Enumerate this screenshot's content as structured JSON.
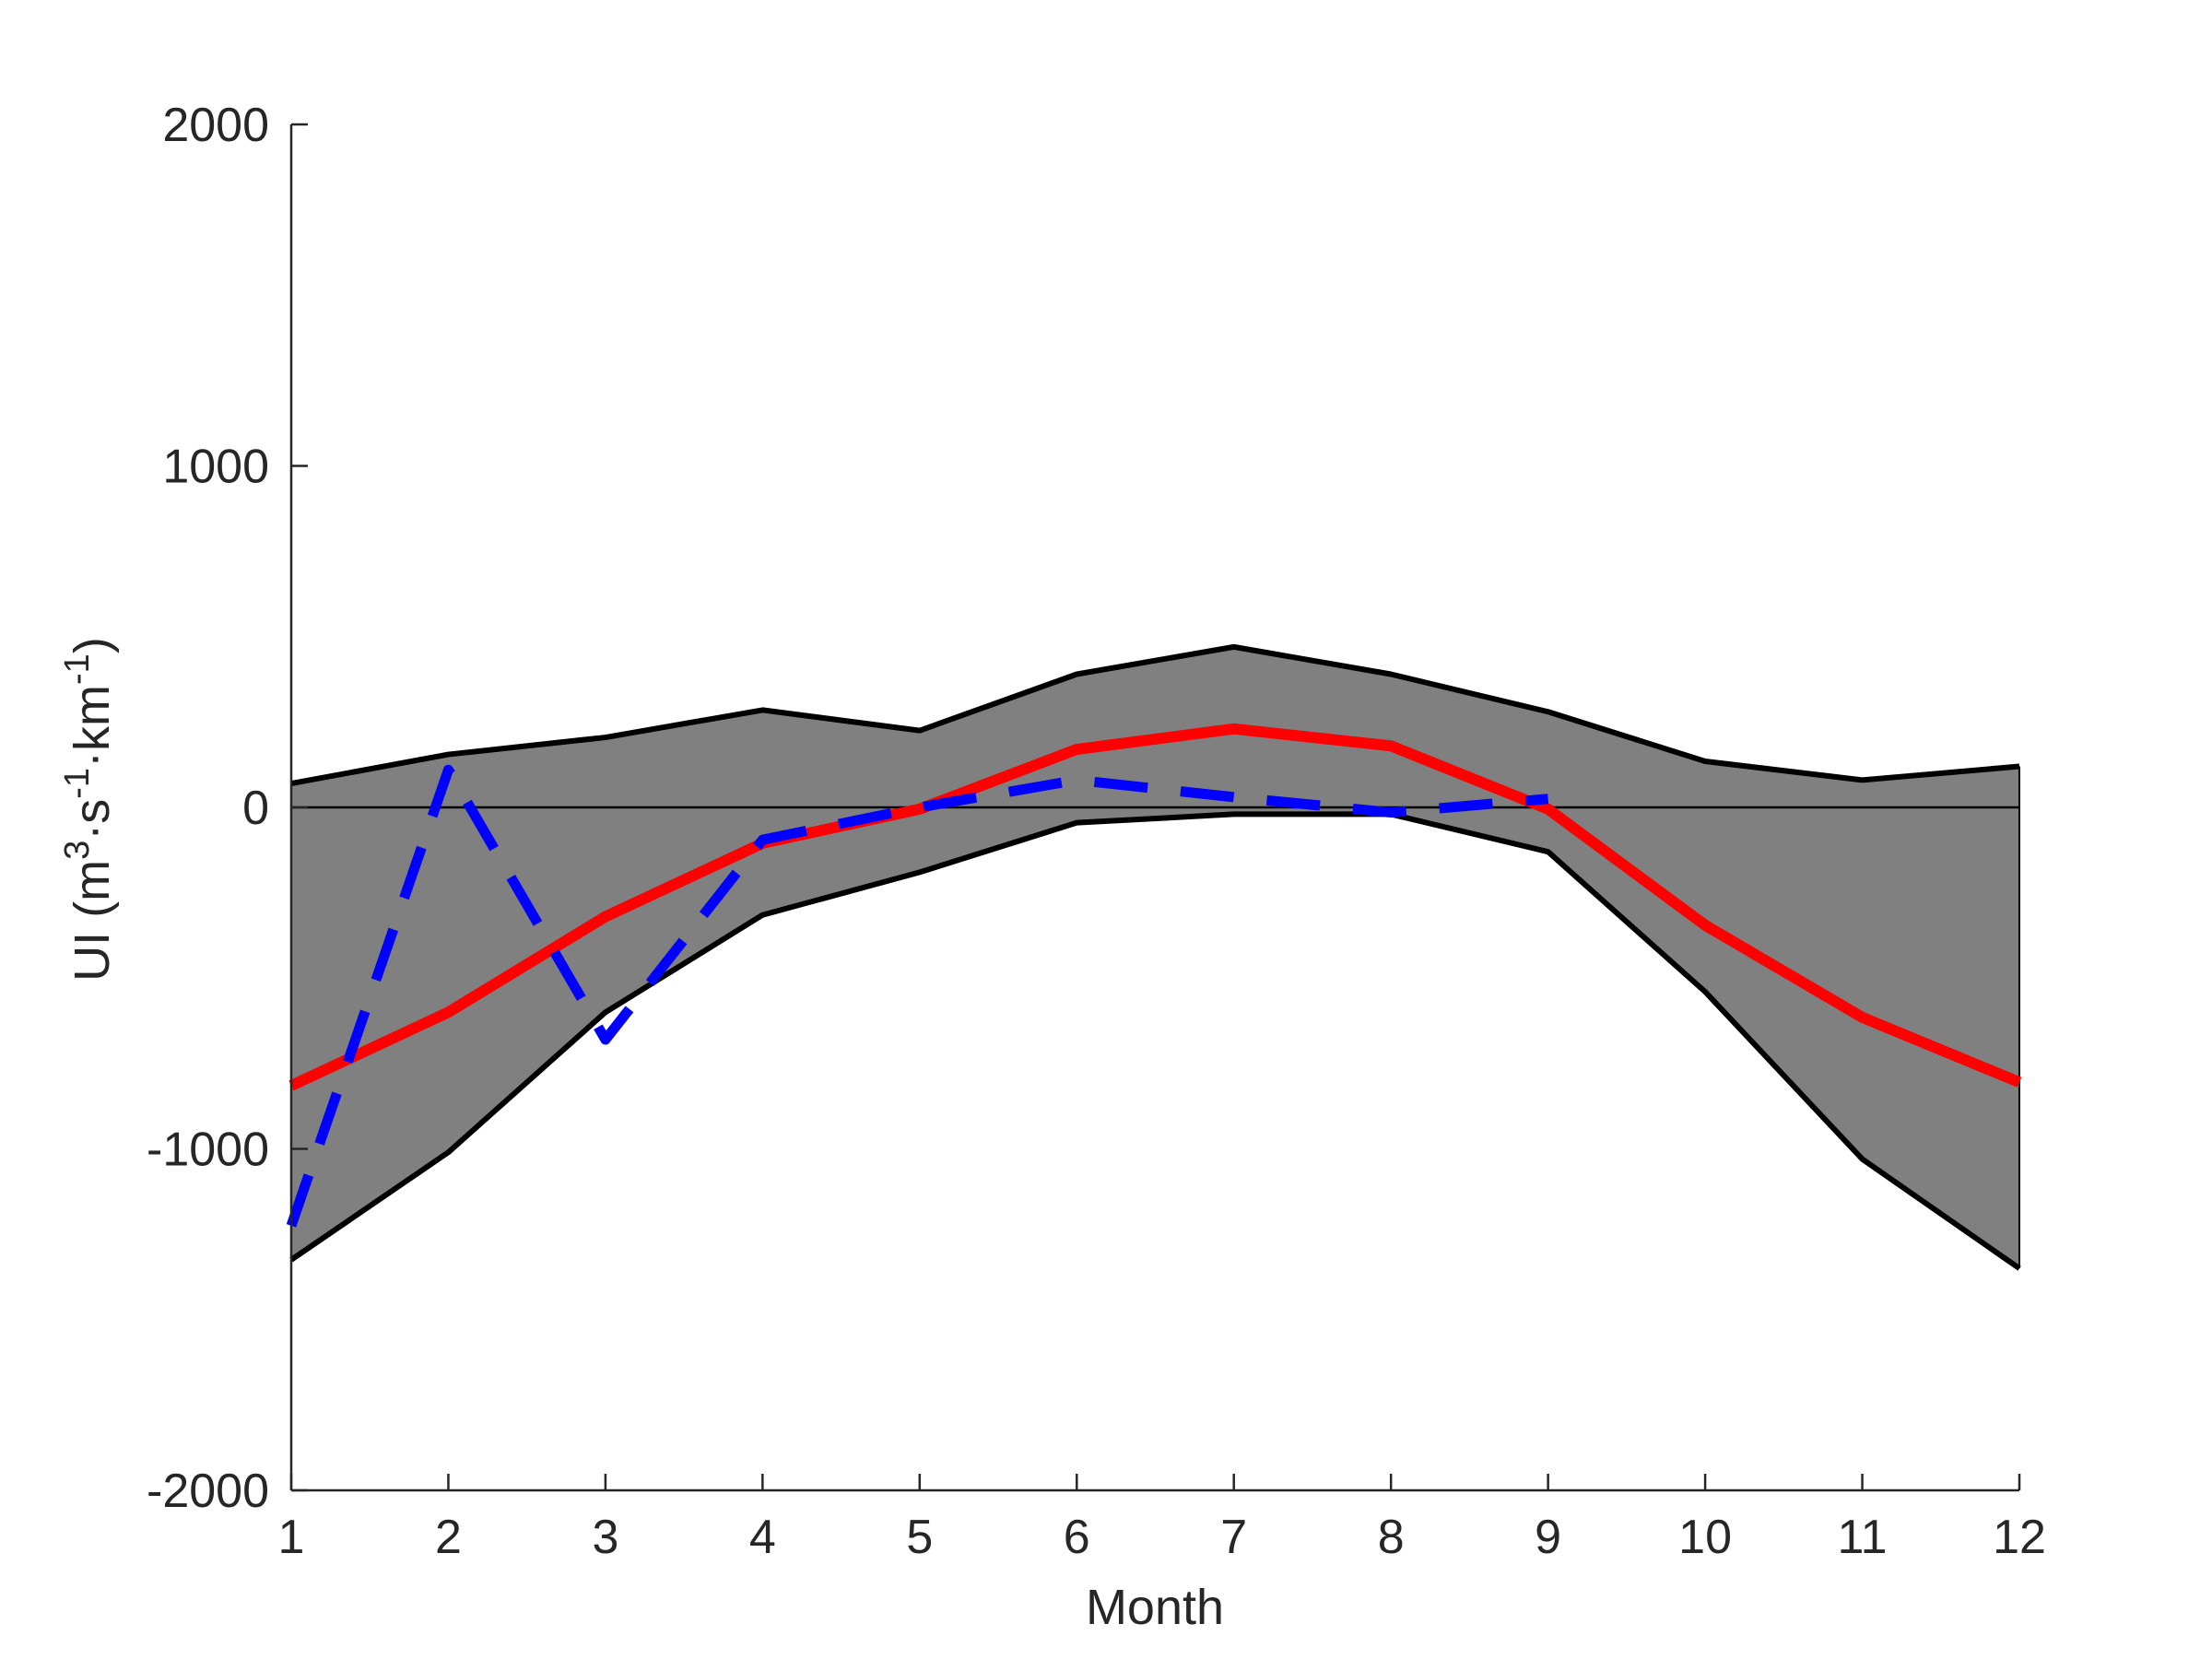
{
  "chart_data": {
    "type": "line",
    "title": "",
    "xlabel": "Month",
    "ylabel": {
      "prefix": "UI (m",
      "sup1": "3",
      "mid1": "·s",
      "sup2": "-1",
      "mid2": "·km",
      "sup3": "-1",
      "suffix": ")"
    },
    "xlim": [
      1,
      12
    ],
    "ylim": [
      -2000,
      2000
    ],
    "x_ticks": [
      1,
      2,
      3,
      4,
      5,
      6,
      7,
      8,
      9,
      10,
      11,
      12
    ],
    "y_ticks": [
      -2000,
      -1000,
      0,
      1000,
      2000
    ],
    "x_tick_labels": [
      "1",
      "2",
      "3",
      "4",
      "5",
      "6",
      "7",
      "8",
      "9",
      "10",
      "11",
      "12"
    ],
    "y_tick_labels": [
      "-2000",
      "-1000",
      "0",
      "1000",
      "2000"
    ],
    "x": [
      1,
      2,
      3,
      4,
      5,
      6,
      7,
      8,
      9,
      10,
      11,
      12
    ],
    "band": {
      "upper": [
        70,
        155,
        205,
        285,
        225,
        390,
        470,
        390,
        280,
        135,
        80,
        120
      ],
      "lower": [
        -1325,
        -1010,
        -600,
        -315,
        -190,
        -45,
        -20,
        -20,
        -130,
        -540,
        -1030,
        -1350
      ],
      "fill_color": "#808080",
      "edge_color": "#000000"
    },
    "series": [
      {
        "values": [
          -815,
          -600,
          -320,
          -105,
          -5,
          170,
          230,
          180,
          -5,
          -345,
          -615,
          -805
        ],
        "color": "#ff0000",
        "style": "solid"
      },
      {
        "values": [
          -1225,
          110,
          -680,
          -95,
          0,
          80,
          30,
          -15,
          25,
          null,
          null,
          null
        ],
        "color": "#0000ff",
        "style": "dashed"
      }
    ],
    "zero_line": true,
    "grid": false,
    "legend": "none"
  }
}
